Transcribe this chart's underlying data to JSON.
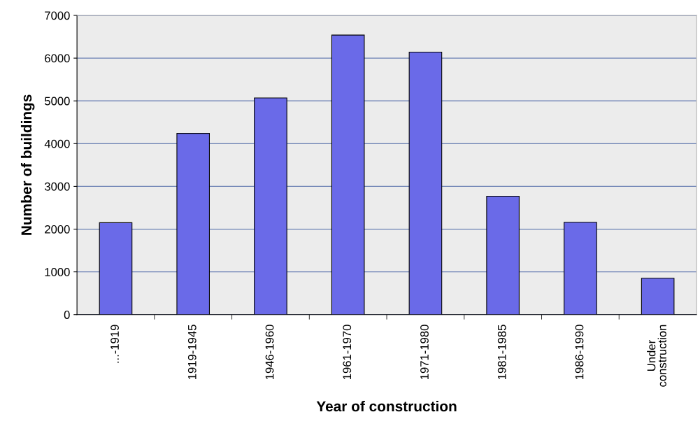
{
  "chart_data": {
    "type": "bar",
    "xlabel": "Year of construction",
    "ylabel": "Number of buildings",
    "categories": [
      "...-1919",
      "1919-1945",
      "1946-1960",
      "1961-1970",
      "1971-1980",
      "1981-1985",
      "1986-1990",
      "Under\nconstruction"
    ],
    "values": [
      2150,
      4240,
      5070,
      6540,
      6140,
      2770,
      2160,
      850
    ],
    "color": "#6a6ae8",
    "ylim": [
      0,
      7000
    ],
    "yticks": [
      0,
      1000,
      2000,
      3000,
      4000,
      5000,
      6000,
      7000
    ],
    "grid": "y"
  }
}
